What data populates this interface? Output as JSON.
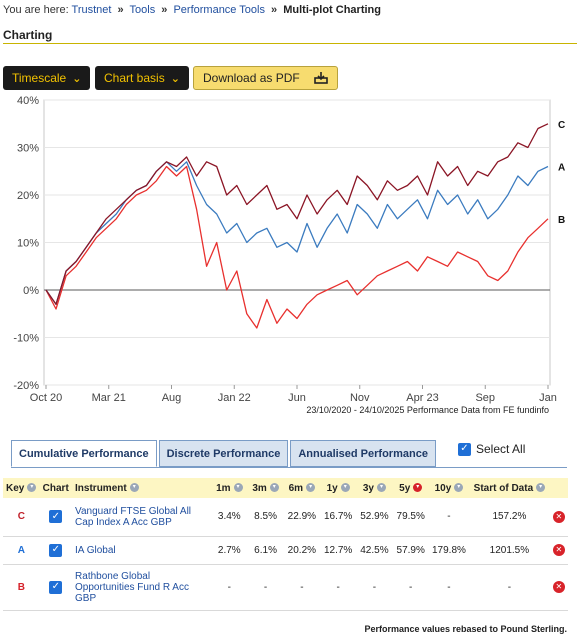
{
  "breadcrumb": {
    "prefix": "You are here:",
    "items": [
      "Trustnet",
      "Tools",
      "Performance Tools"
    ],
    "current": "Multi-plot Charting"
  },
  "section_title": "Charting",
  "toolbar": {
    "timescale_label": "Timescale",
    "chart_basis_label": "Chart basis",
    "pdf_label": "Download as PDF"
  },
  "chart_data": {
    "type": "line",
    "x_tick_labels": [
      "Oct 20",
      "Mar 21",
      "Aug",
      "Jan 22",
      "Jun",
      "Nov",
      "Apr 23",
      "Sep",
      "Jan"
    ],
    "y_tick_labels": [
      "40%",
      "30%",
      "20%",
      "10%",
      "0%",
      "-10%",
      "-20%"
    ],
    "ylim": [
      -20,
      40
    ],
    "y_ticks": [
      40,
      30,
      20,
      10,
      0,
      -10,
      -20
    ],
    "grid": "horizontal",
    "caption": "23/10/2020 - 24/10/2025 Performance Data from FE fundinfo",
    "series": [
      {
        "name": "C",
        "color": "#8b1525",
        "values": [
          0,
          -3,
          4,
          6,
          9,
          12,
          15,
          17,
          19,
          21,
          22,
          25,
          27,
          26,
          28,
          24,
          27,
          26,
          20,
          22,
          18,
          20,
          22,
          17,
          18,
          15,
          20,
          16,
          19,
          21,
          18,
          24,
          22,
          19,
          23,
          21,
          22,
          24,
          20,
          27,
          24,
          26,
          22,
          25,
          24,
          27,
          28,
          31,
          30,
          34,
          35
        ]
      },
      {
        "name": "A",
        "color": "#3b7bbf",
        "values": [
          0,
          -3,
          4,
          6,
          9,
          12,
          14,
          16,
          19,
          21,
          22,
          25,
          27,
          25,
          27,
          22,
          18,
          16,
          12,
          14,
          10,
          12,
          13,
          9,
          10,
          8,
          14,
          9,
          13,
          16,
          12,
          18,
          16,
          13,
          18,
          15,
          17,
          19,
          15,
          21,
          18,
          20,
          16,
          19,
          15,
          17,
          20,
          24,
          22,
          25,
          26
        ]
      },
      {
        "name": "B",
        "color": "#e8302e",
        "values": [
          0,
          -4,
          3,
          5,
          8,
          11,
          13,
          15,
          18,
          20,
          21,
          23,
          26,
          24,
          26,
          17,
          5,
          10,
          0,
          4,
          -5,
          -8,
          -2,
          -7,
          -4,
          -6,
          -3,
          -1,
          0,
          1,
          2,
          -1,
          1,
          3,
          4,
          5,
          6,
          4,
          7,
          6,
          5,
          8,
          7,
          6,
          3,
          2,
          4,
          8,
          11,
          13,
          15
        ]
      }
    ]
  },
  "tabs": [
    {
      "label": "Cumulative Performance",
      "active": true
    },
    {
      "label": "Discrete Performance",
      "active": false
    },
    {
      "label": "Annualised Performance",
      "active": false
    }
  ],
  "select_all_label": "Select All",
  "check_glyph": "✓",
  "sort_glyph": "▾",
  "remove_glyph": "✕",
  "table": {
    "columns": [
      "Key",
      "Chart",
      "Instrument",
      "1m",
      "3m",
      "6m",
      "1y",
      "3y",
      "5y",
      "10y",
      "Start of Data"
    ],
    "rows": [
      {
        "key": "C",
        "key_color": "#c0202a",
        "instrument": "Vanguard FTSE Global All Cap Index A Acc GBP",
        "values": [
          "3.4%",
          "8.5%",
          "22.9%",
          "16.7%",
          "52.9%",
          "79.5%",
          "-",
          "157.2%"
        ]
      },
      {
        "key": "A",
        "key_color": "#1f6fd6",
        "instrument": "IA Global",
        "values": [
          "2.7%",
          "6.1%",
          "20.2%",
          "12.7%",
          "42.5%",
          "57.9%",
          "179.8%",
          "1201.5%"
        ]
      },
      {
        "key": "B",
        "key_color": "#d6222a",
        "instrument": "Rathbone Global Opportunities Fund R Acc GBP",
        "values": [
          "-",
          "-",
          "-",
          "-",
          "-",
          "-",
          "-",
          "-"
        ]
      }
    ]
  },
  "footer_note": "Performance values rebased to Pound Sterling."
}
